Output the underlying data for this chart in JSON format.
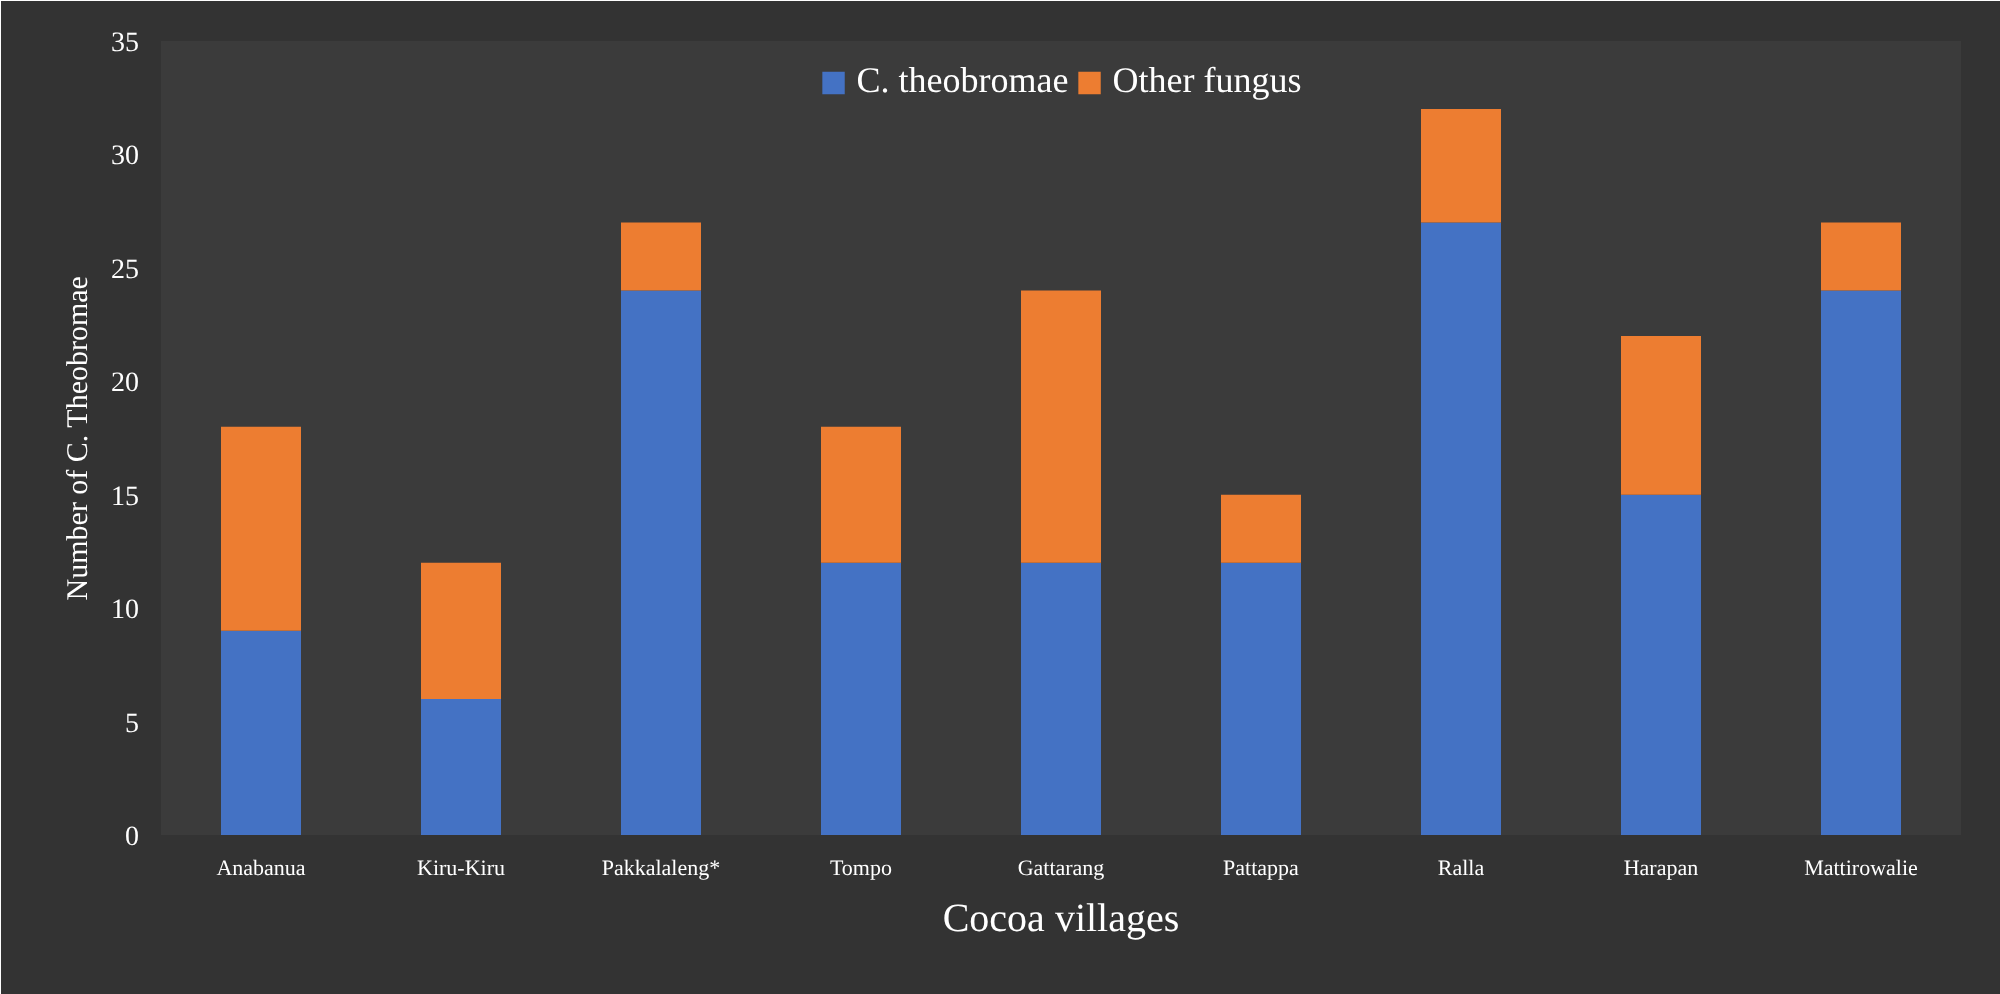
{
  "chart_data": {
    "type": "bar",
    "stacked": true,
    "xlabel": "Cocoa villages",
    "ylabel": "Number of C. Theobromae",
    "categories": [
      "Anabanua",
      "Kiru-Kiru",
      "Pakkalaleng*",
      "Tompo",
      "Gattarang",
      "Pattappa",
      "Ralla",
      "Harapan",
      "Mattirowalie"
    ],
    "series": [
      {
        "name": "C. theobromae",
        "color": "#4472c4",
        "values": [
          9,
          6,
          24,
          12,
          12,
          12,
          27,
          15,
          24
        ]
      },
      {
        "name": "Other fungus",
        "color": "#ed7d31",
        "values": [
          9,
          6,
          3,
          6,
          12,
          3,
          5,
          7,
          3
        ]
      }
    ],
    "ylim": [
      0,
      35
    ],
    "yticks": [
      0,
      5,
      10,
      15,
      20,
      25,
      30,
      35
    ],
    "grid": false,
    "legend": "top"
  }
}
